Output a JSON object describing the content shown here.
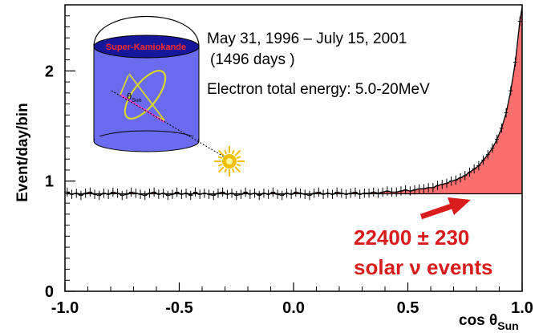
{
  "chart_data": {
    "type": "scatter",
    "title": "",
    "xlabel": "cos θ",
    "xlabel_sub": "Sun",
    "ylabel": "Event/day/bin",
    "xlim": [
      -1.0,
      1.0
    ],
    "ylim": [
      0,
      2.6
    ],
    "x_ticks": [
      "-1.0",
      "-0.5",
      "0.0",
      "0.5",
      "1.0"
    ],
    "y_ticks": [
      "0",
      "1",
      "2"
    ],
    "background_level": 0.885,
    "series": [
      {
        "name": "",
        "x": [
          -0.99,
          -0.97,
          -0.95,
          -0.93,
          -0.91,
          -0.89,
          -0.87,
          -0.85,
          -0.83,
          -0.81,
          -0.79,
          -0.77,
          -0.75,
          -0.73,
          -0.71,
          -0.69,
          -0.67,
          -0.65,
          -0.63,
          -0.61,
          -0.59,
          -0.57,
          -0.55,
          -0.53,
          -0.51,
          -0.49,
          -0.47,
          -0.45,
          -0.43,
          -0.41,
          -0.39,
          -0.37,
          -0.35,
          -0.33,
          -0.31,
          -0.29,
          -0.27,
          -0.25,
          -0.23,
          -0.21,
          -0.19,
          -0.17,
          -0.15,
          -0.13,
          -0.11,
          -0.09,
          -0.07,
          -0.05,
          -0.03,
          -0.01,
          0.01,
          0.03,
          0.05,
          0.07,
          0.09,
          0.11,
          0.13,
          0.15,
          0.17,
          0.19,
          0.21,
          0.23,
          0.25,
          0.27,
          0.29,
          0.31,
          0.33,
          0.35,
          0.37,
          0.39,
          0.41,
          0.43,
          0.45,
          0.47,
          0.49,
          0.51,
          0.53,
          0.55,
          0.57,
          0.59,
          0.61,
          0.63,
          0.65,
          0.67,
          0.69,
          0.71,
          0.73,
          0.75,
          0.77,
          0.79,
          0.81,
          0.83,
          0.85,
          0.87,
          0.89,
          0.91,
          0.93,
          0.95,
          0.97,
          0.99
        ],
        "y": [
          0.9,
          0.88,
          0.89,
          0.87,
          0.89,
          0.9,
          0.88,
          0.87,
          0.89,
          0.88,
          0.9,
          0.89,
          0.87,
          0.88,
          0.9,
          0.89,
          0.88,
          0.87,
          0.89,
          0.9,
          0.88,
          0.89,
          0.87,
          0.88,
          0.9,
          0.88,
          0.89,
          0.87,
          0.9,
          0.88,
          0.89,
          0.88,
          0.87,
          0.89,
          0.9,
          0.88,
          0.89,
          0.87,
          0.88,
          0.9,
          0.88,
          0.89,
          0.87,
          0.89,
          0.88,
          0.9,
          0.88,
          0.87,
          0.89,
          0.88,
          0.9,
          0.89,
          0.88,
          0.87,
          0.89,
          0.9,
          0.88,
          0.89,
          0.88,
          0.9,
          0.89,
          0.88,
          0.89,
          0.9,
          0.88,
          0.89,
          0.89,
          0.9,
          0.89,
          0.9,
          0.91,
          0.9,
          0.9,
          0.91,
          0.92,
          0.91,
          0.92,
          0.93,
          0.93,
          0.94,
          0.94,
          0.96,
          0.97,
          0.98,
          1.0,
          1.01,
          1.03,
          1.05,
          1.08,
          1.11,
          1.14,
          1.19,
          1.24,
          1.3,
          1.38,
          1.48,
          1.62,
          1.82,
          2.08,
          2.45
        ],
        "yerr": 0.02
      }
    ],
    "annotations": {
      "period": "May 31, 1996 – July 15, 2001",
      "days": "(1496 days )",
      "energy": "Electron total energy: 5.0-20MeV",
      "events_count": "22400 ± 230",
      "events_label": "solar ν events",
      "detector_label": "Super-Kamiokande",
      "angle_label": "θ",
      "angle_label_sub": "Sun"
    },
    "colors": {
      "signal_fill": "#fb6f6f",
      "signal_text": "#d91c1c",
      "detector_body": "#6b6bf0",
      "detector_top": "#16169a",
      "sun": "#f0c000"
    },
    "grid": false,
    "legend": "none"
  }
}
